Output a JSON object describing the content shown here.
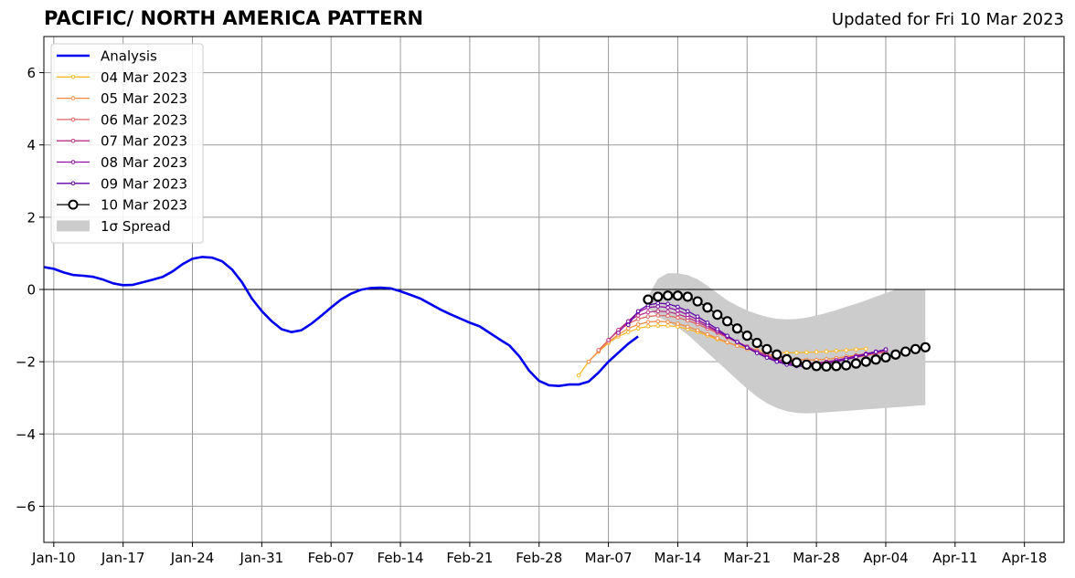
{
  "header": {
    "title": "PACIFIC/ NORTH AMERICA PATTERN",
    "updated": "Updated for Fri 10 Mar 2023"
  },
  "chart_data": {
    "type": "line",
    "title": "PACIFIC/ NORTH AMERICA PATTERN",
    "subtitle": "Updated for Fri 10 Mar 2023",
    "xlabel": "",
    "ylabel": "",
    "x_start": "2023-01-08",
    "xlim": [
      "2023-01-09",
      "2023-04-22"
    ],
    "ylim": [
      -7,
      7
    ],
    "grid": true,
    "legend_position": "top-left",
    "x_ticks": [
      {
        "date": "2023-01-10",
        "label": "Jan-10"
      },
      {
        "date": "2023-01-17",
        "label": "Jan-17"
      },
      {
        "date": "2023-01-24",
        "label": "Jan-24"
      },
      {
        "date": "2023-01-31",
        "label": "Jan-31"
      },
      {
        "date": "2023-02-07",
        "label": "Feb-07"
      },
      {
        "date": "2023-02-14",
        "label": "Feb-14"
      },
      {
        "date": "2023-02-21",
        "label": "Feb-21"
      },
      {
        "date": "2023-02-28",
        "label": "Feb-28"
      },
      {
        "date": "2023-03-07",
        "label": "Mar-07"
      },
      {
        "date": "2023-03-14",
        "label": "Mar-14"
      },
      {
        "date": "2023-03-21",
        "label": "Mar-21"
      },
      {
        "date": "2023-03-28",
        "label": "Mar-28"
      },
      {
        "date": "2023-04-04",
        "label": "Apr-04"
      },
      {
        "date": "2023-04-11",
        "label": "Apr-11"
      },
      {
        "date": "2023-04-18",
        "label": "Apr-18"
      }
    ],
    "y_ticks": [
      {
        "value": 6,
        "label": "6"
      },
      {
        "value": 4,
        "label": "4"
      },
      {
        "value": 2,
        "label": "2"
      },
      {
        "value": 0,
        "label": "0"
      },
      {
        "value": -2,
        "label": "−2"
      },
      {
        "value": -4,
        "label": "−4"
      },
      {
        "value": -6,
        "label": "−6"
      }
    ],
    "legend": [
      {
        "label": "Analysis",
        "color": "#0000ee",
        "kind": "line"
      },
      {
        "label": "04 Mar 2023",
        "color": "#fcb829",
        "kind": "small-marker"
      },
      {
        "label": "05 Mar 2023",
        "color": "#f48a46",
        "kind": "small-marker"
      },
      {
        "label": "06 Mar 2023",
        "color": "#e16462",
        "kind": "small-marker"
      },
      {
        "label": "07 Mar 2023",
        "color": "#b83289",
        "kind": "small-marker"
      },
      {
        "label": "08 Mar 2023",
        "color": "#8f0da4",
        "kind": "small-marker"
      },
      {
        "label": "09 Mar 2023",
        "color": "#5c01a6",
        "kind": "small-marker"
      },
      {
        "label": "10 Mar 2023",
        "color": "#000000",
        "kind": "big-marker"
      },
      {
        "label": "1σ Spread",
        "color": "#cccccc",
        "kind": "patch"
      }
    ],
    "analysis": {
      "name": "Analysis",
      "color": "#0000ee",
      "start_date": "2023-01-09",
      "values": [
        0.62,
        0.57,
        0.47,
        0.4,
        0.38,
        0.35,
        0.27,
        0.17,
        0.12,
        0.13,
        0.2,
        0.27,
        0.35,
        0.5,
        0.7,
        0.85,
        0.9,
        0.88,
        0.78,
        0.55,
        0.2,
        -0.25,
        -0.6,
        -0.88,
        -1.1,
        -1.18,
        -1.13,
        -0.95,
        -0.73,
        -0.5,
        -0.28,
        -0.12,
        -0.01,
        0.04,
        0.05,
        0.03,
        -0.05,
        -0.15,
        -0.25,
        -0.4,
        -0.55,
        -0.68,
        -0.8,
        -0.92,
        -1.02,
        -1.2,
        -1.38,
        -1.55,
        -1.85,
        -2.25,
        -2.53,
        -2.65,
        -2.67,
        -2.63,
        -2.63,
        -2.55,
        -2.3,
        -2.0,
        -1.75,
        -1.5,
        -1.3
      ]
    },
    "forecasts": [
      {
        "name": "04 Mar 2023",
        "color": "#fcb829",
        "start_date": "2023-03-04",
        "values": [
          -2.38,
          -2.0,
          -1.72,
          -1.48,
          -1.3,
          -1.18,
          -1.08,
          -1.02,
          -1.0,
          -1.0,
          -1.03,
          -1.1,
          -1.18,
          -1.28,
          -1.38,
          -1.47,
          -1.55,
          -1.62,
          -1.68,
          -1.72,
          -1.74,
          -1.75,
          -1.75,
          -1.74,
          -1.73,
          -1.72,
          -1.7,
          -1.68,
          -1.66,
          -1.64
        ]
      },
      {
        "name": "05 Mar 2023",
        "color": "#f48a46",
        "start_date": "2023-03-05",
        "values": [
          -2.0,
          -1.7,
          -1.45,
          -1.25,
          -1.08,
          -0.97,
          -0.9,
          -0.88,
          -0.9,
          -0.95,
          -1.03,
          -1.13,
          -1.24,
          -1.35,
          -1.46,
          -1.56,
          -1.65,
          -1.72,
          -1.8,
          -1.85,
          -1.9,
          -1.93,
          -1.95,
          -1.95,
          -1.93,
          -1.9,
          -1.86,
          -1.82,
          -1.78,
          -1.74
        ]
      },
      {
        "name": "06 Mar 2023",
        "color": "#e16462",
        "start_date": "2023-03-06",
        "values": [
          -1.68,
          -1.4,
          -1.15,
          -0.95,
          -0.82,
          -0.75,
          -0.72,
          -0.73,
          -0.78,
          -0.86,
          -0.96,
          -1.08,
          -1.2,
          -1.33,
          -1.46,
          -1.59,
          -1.71,
          -1.83,
          -1.93,
          -2.0,
          -2.05,
          -2.07,
          -2.06,
          -2.03,
          -1.99,
          -1.94,
          -1.88,
          -1.83,
          -1.78,
          -1.73
        ]
      },
      {
        "name": "07 Mar 2023",
        "color": "#b83289",
        "start_date": "2023-03-07",
        "values": [
          -1.4,
          -1.12,
          -0.88,
          -0.72,
          -0.63,
          -0.6,
          -0.62,
          -0.68,
          -0.78,
          -0.9,
          -1.03,
          -1.17,
          -1.31,
          -1.45,
          -1.58,
          -1.71,
          -1.83,
          -1.93,
          -2.0,
          -2.04,
          -2.05,
          -2.03,
          -2.0,
          -1.96,
          -1.91,
          -1.86,
          -1.8,
          -1.75,
          -1.7
        ]
      },
      {
        "name": "08 Mar 2023",
        "color": "#8f0da4",
        "start_date": "2023-03-08",
        "values": [
          -1.2,
          -0.88,
          -0.63,
          -0.5,
          -0.47,
          -0.5,
          -0.58,
          -0.7,
          -0.84,
          -0.99,
          -1.15,
          -1.31,
          -1.46,
          -1.61,
          -1.75,
          -1.87,
          -1.97,
          -2.04,
          -2.08,
          -2.08,
          -2.05,
          -2.01,
          -1.96,
          -1.9,
          -1.84,
          -1.78,
          -1.72,
          -1.66
        ]
      },
      {
        "name": "09 Mar 2023",
        "color": "#5c01a6",
        "start_date": "2023-03-09",
        "values": [
          -0.98,
          -0.6,
          -0.43,
          -0.38,
          -0.4,
          -0.48,
          -0.6,
          -0.75,
          -0.92,
          -1.1,
          -1.28,
          -1.45,
          -1.61,
          -1.76,
          -1.89,
          -2.0,
          -2.08,
          -2.12,
          -2.13,
          -2.1,
          -2.05,
          -2.0,
          -1.94,
          -1.87,
          -1.8,
          -1.73,
          -1.66
        ]
      }
    ],
    "latest": {
      "name": "10 Mar 2023",
      "color": "#000000",
      "start_date": "2023-03-11",
      "values": [
        -0.28,
        -0.2,
        -0.17,
        -0.17,
        -0.2,
        -0.33,
        -0.5,
        -0.7,
        -0.88,
        -1.08,
        -1.28,
        -1.48,
        -1.65,
        -1.8,
        -1.93,
        -2.02,
        -2.08,
        -2.12,
        -2.13,
        -2.12,
        -2.1,
        -2.05,
        -2.0,
        -1.94,
        -1.88,
        -1.8,
        -1.72,
        -1.65,
        -1.6
      ]
    },
    "spread": {
      "name": "1σ Spread",
      "color": "#cccccc",
      "start_date": "2023-03-11",
      "upper": [
        -0.2,
        0.3,
        0.45,
        0.45,
        0.4,
        0.28,
        0.1,
        -0.1,
        -0.3,
        -0.45,
        -0.58,
        -0.68,
        -0.76,
        -0.81,
        -0.83,
        -0.82,
        -0.78,
        -0.72,
        -0.65,
        -0.57,
        -0.48,
        -0.4,
        -0.3,
        -0.2,
        -0.1,
        0.0,
        0.0,
        0.0,
        0.0
      ],
      "lower": [
        -0.5,
        -0.75,
        -0.9,
        -1.05,
        -1.25,
        -1.5,
        -1.75,
        -2.0,
        -2.25,
        -2.5,
        -2.75,
        -2.97,
        -3.15,
        -3.28,
        -3.37,
        -3.42,
        -3.43,
        -3.42,
        -3.4,
        -3.38,
        -3.36,
        -3.34,
        -3.32,
        -3.3,
        -3.28,
        -3.26,
        -3.24,
        -3.22,
        -3.2
      ]
    }
  }
}
